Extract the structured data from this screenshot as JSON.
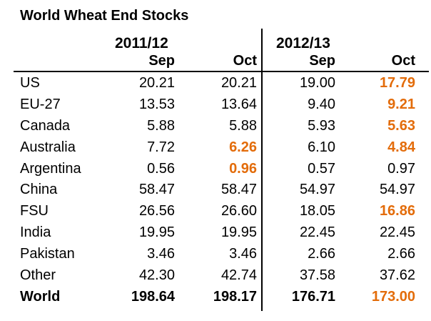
{
  "title": "World Wheat End Stocks",
  "colors": {
    "highlight_orange": "#E36C0A",
    "text": "#000000",
    "background": "#FFFFFF"
  },
  "table": {
    "year_groups": [
      {
        "label": "2011/12"
      },
      {
        "label": "2012/13"
      }
    ],
    "month_headers": [
      "Sep",
      "Oct",
      "Sep",
      "Oct"
    ],
    "rows": [
      {
        "label": "US",
        "values": [
          "20.21",
          "20.21",
          "19.00",
          "17.79"
        ],
        "orange": [
          3
        ],
        "bold": false
      },
      {
        "label": "EU-27",
        "values": [
          "13.53",
          "13.64",
          "9.40",
          "9.21"
        ],
        "orange": [
          3
        ],
        "bold": false
      },
      {
        "label": "Canada",
        "values": [
          "5.88",
          "5.88",
          "5.93",
          "5.63"
        ],
        "orange": [
          3
        ],
        "bold": false
      },
      {
        "label": "Australia",
        "values": [
          "7.72",
          "6.26",
          "6.10",
          "4.84"
        ],
        "orange": [
          1,
          3
        ],
        "bold": false
      },
      {
        "label": "Argentina",
        "values": [
          "0.56",
          "0.96",
          "0.57",
          "0.97"
        ],
        "orange": [
          1
        ],
        "bold": false
      },
      {
        "label": "China",
        "values": [
          "58.47",
          "58.47",
          "54.97",
          "54.97"
        ],
        "orange": [],
        "bold": false
      },
      {
        "label": "FSU",
        "values": [
          "26.56",
          "26.60",
          "18.05",
          "16.86"
        ],
        "orange": [
          3
        ],
        "bold": false
      },
      {
        "label": "India",
        "values": [
          "19.95",
          "19.95",
          "22.45",
          "22.45"
        ],
        "orange": [],
        "bold": false
      },
      {
        "label": "Pakistan",
        "values": [
          "3.46",
          "3.46",
          "2.66",
          "2.66"
        ],
        "orange": [],
        "bold": false
      },
      {
        "label": "Other",
        "values": [
          "42.30",
          "42.74",
          "37.58",
          "37.62"
        ],
        "orange": [],
        "bold": false
      },
      {
        "label": "World",
        "values": [
          "198.64",
          "198.17",
          "176.71",
          "173.00"
        ],
        "orange": [
          3
        ],
        "bold": true
      }
    ]
  },
  "chart_data": {
    "type": "table",
    "title": "World Wheat End Stocks",
    "column_groups": [
      "2011/12",
      "2012/13"
    ],
    "columns": [
      "2011/12 Sep",
      "2011/12 Oct",
      "2012/13 Sep",
      "2012/13 Oct"
    ],
    "rows": [
      {
        "name": "US",
        "values": [
          20.21,
          20.21,
          19.0,
          17.79
        ]
      },
      {
        "name": "EU-27",
        "values": [
          13.53,
          13.64,
          9.4,
          9.21
        ]
      },
      {
        "name": "Canada",
        "values": [
          5.88,
          5.88,
          5.93,
          5.63
        ]
      },
      {
        "name": "Australia",
        "values": [
          7.72,
          6.26,
          6.1,
          4.84
        ]
      },
      {
        "name": "Argentina",
        "values": [
          0.56,
          0.96,
          0.57,
          0.97
        ]
      },
      {
        "name": "China",
        "values": [
          58.47,
          58.47,
          54.97,
          54.97
        ]
      },
      {
        "name": "FSU",
        "values": [
          26.56,
          26.6,
          18.05,
          16.86
        ]
      },
      {
        "name": "India",
        "values": [
          19.95,
          19.95,
          22.45,
          22.45
        ]
      },
      {
        "name": "Pakistan",
        "values": [
          3.46,
          3.46,
          2.66,
          2.66
        ]
      },
      {
        "name": "Other",
        "values": [
          42.3,
          42.74,
          37.58,
          37.62
        ]
      },
      {
        "name": "World",
        "values": [
          198.64,
          198.17,
          176.71,
          173.0
        ]
      }
    ],
    "highlighted_cells_color": "#E36C0A",
    "highlighted_cells": [
      [
        "US",
        "2012/13 Oct"
      ],
      [
        "EU-27",
        "2012/13 Oct"
      ],
      [
        "Canada",
        "2012/13 Oct"
      ],
      [
        "Australia",
        "2011/12 Oct"
      ],
      [
        "Australia",
        "2012/13 Oct"
      ],
      [
        "Argentina",
        "2011/12 Oct"
      ],
      [
        "FSU",
        "2012/13 Oct"
      ],
      [
        "World",
        "2012/13 Oct"
      ]
    ]
  }
}
